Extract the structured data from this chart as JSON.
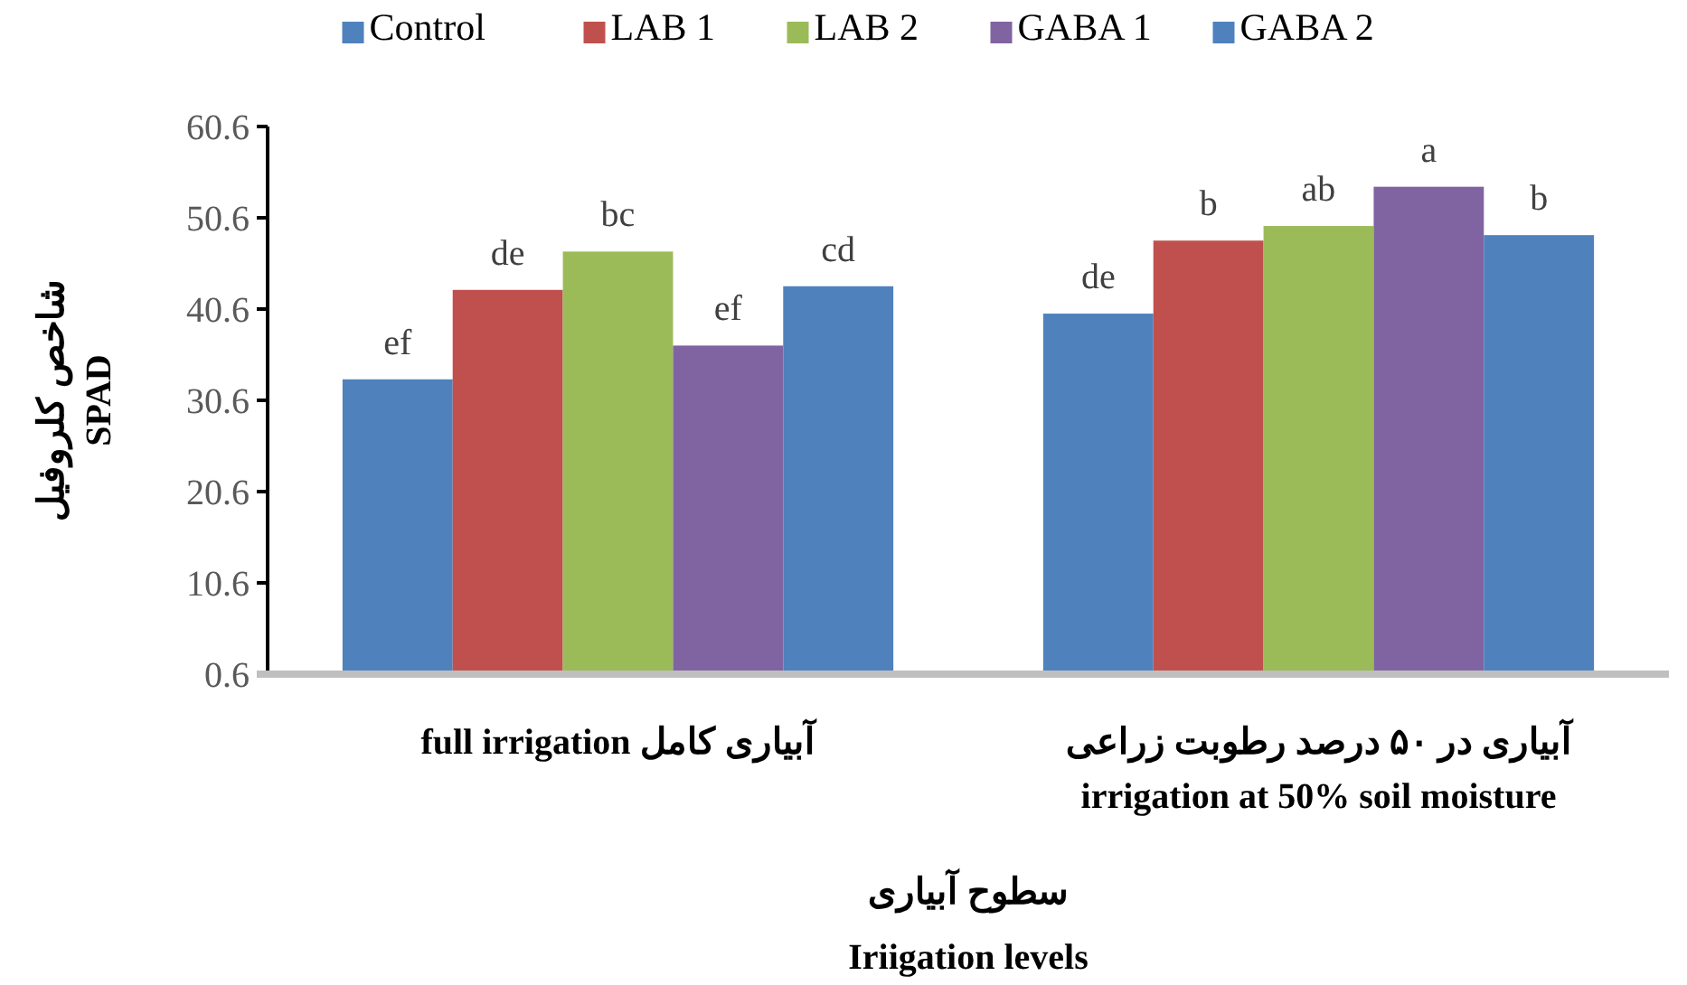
{
  "chart_data": {
    "type": "bar",
    "xlabel": "سطوح آبیاری\nIriigation levels",
    "ylabel": "شاخص کلروفیل\nSPAD",
    "categories": [
      "full irrigation آبیاری کامل",
      "آبیاری در ۵۰ درصد رطوبت زراعی\nirrigation at 50% soil moisture"
    ],
    "series": [
      {
        "name": "Control",
        "color": "#4f81bd",
        "values": [
          32.9,
          40.1
        ],
        "value_labels": [
          "ef",
          "de"
        ]
      },
      {
        "name": "LAB 1",
        "color": "#c0504d",
        "values": [
          42.7,
          48.1
        ],
        "value_labels": [
          "de",
          "b"
        ]
      },
      {
        "name": "LAB 2",
        "color": "#9bbb59",
        "values": [
          46.9,
          49.7
        ],
        "value_labels": [
          "bc",
          "ab"
        ]
      },
      {
        "name": "GABA 1",
        "color": "#8064a2",
        "values": [
          36.6,
          54.0
        ],
        "value_labels": [
          "ef",
          "a"
        ]
      },
      {
        "name": "GABA 2",
        "color": "#4f81bd",
        "values": [
          43.1,
          48.7
        ],
        "value_labels": [
          "cd",
          "b"
        ]
      }
    ],
    "ylim": [
      0.6,
      60.6
    ],
    "yticks": [
      {
        "value": 0.6,
        "label": "0.6"
      },
      {
        "value": 10.6,
        "label": "10.6"
      },
      {
        "value": 20.6,
        "label": "20.6"
      },
      {
        "value": 30.6,
        "label": "30.6"
      },
      {
        "value": 40.6,
        "label": "40.6"
      },
      {
        "value": 50.6,
        "label": "50.6"
      },
      {
        "value": 60.6,
        "label": "60.6"
      }
    ],
    "legend": "top",
    "grid": false
  }
}
